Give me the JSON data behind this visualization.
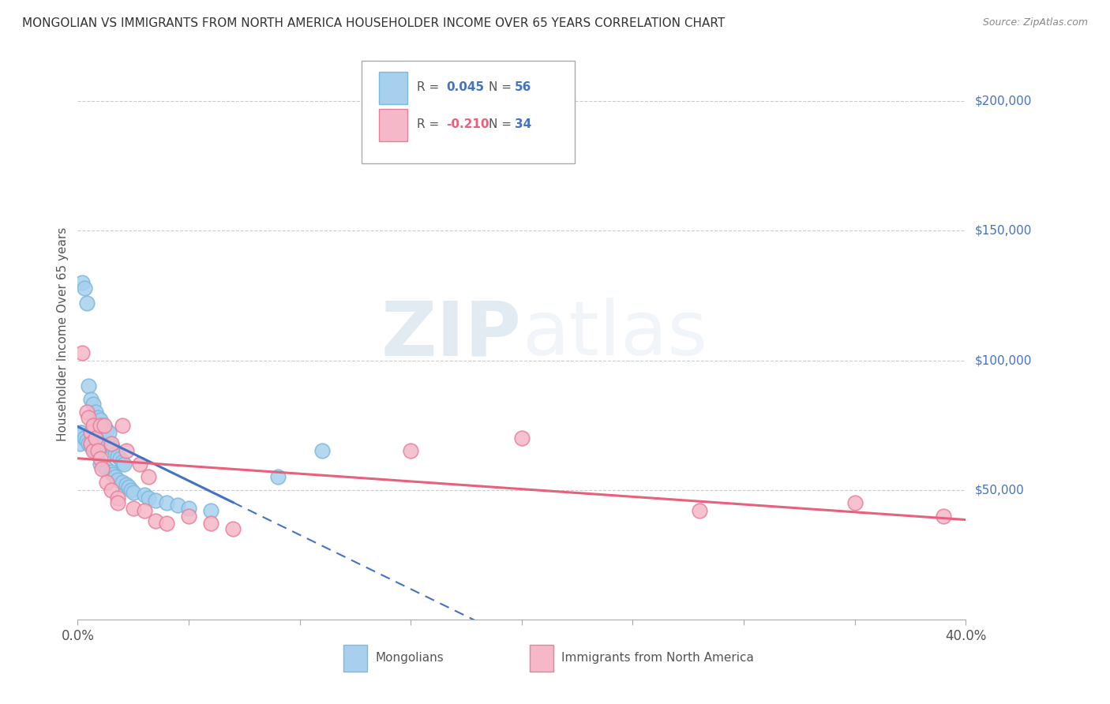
{
  "title": "MONGOLIAN VS IMMIGRANTS FROM NORTH AMERICA HOUSEHOLDER INCOME OVER 65 YEARS CORRELATION CHART",
  "source": "Source: ZipAtlas.com",
  "ylabel": "Householder Income Over 65 years",
  "xlim": [
    0.0,
    0.4
  ],
  "ylim": [
    0,
    220000
  ],
  "mongolian_R": "0.045",
  "mongolian_N": "56",
  "immigrant_R": "-0.210",
  "immigrant_N": "34",
  "mongolian_color": "#A8D0EE",
  "mongolian_edge_color": "#7BBADE",
  "immigrant_color": "#F5B8C8",
  "immigrant_edge_color": "#E8809A",
  "mongolian_line_color": "#4472C4",
  "immigrant_line_color": "#E8607A",
  "background_color": "#FFFFFF",
  "grid_color": "#CCCCCC",
  "watermark_zip": "ZIP",
  "watermark_atlas": "atlas",
  "title_color": "#333333",
  "source_color": "#888888",
  "ylabel_color": "#555555",
  "ytick_color": "#4472C4",
  "mongolian_x": [
    0.001,
    0.001,
    0.002,
    0.002,
    0.003,
    0.003,
    0.004,
    0.004,
    0.005,
    0.005,
    0.006,
    0.006,
    0.007,
    0.007,
    0.008,
    0.008,
    0.008,
    0.009,
    0.009,
    0.009,
    0.01,
    0.01,
    0.01,
    0.01,
    0.011,
    0.011,
    0.012,
    0.012,
    0.013,
    0.013,
    0.014,
    0.015,
    0.015,
    0.016,
    0.016,
    0.017,
    0.017,
    0.018,
    0.018,
    0.019,
    0.02,
    0.02,
    0.021,
    0.022,
    0.023,
    0.024,
    0.025,
    0.03,
    0.032,
    0.035,
    0.04,
    0.045,
    0.05,
    0.06,
    0.09,
    0.11
  ],
  "mongolian_y": [
    72000,
    68000,
    130000,
    72000,
    128000,
    70000,
    122000,
    69000,
    90000,
    68000,
    85000,
    67000,
    83000,
    66000,
    80000,
    75000,
    65000,
    78000,
    74000,
    64000,
    77000,
    73000,
    71000,
    60000,
    75000,
    70000,
    68000,
    59000,
    73000,
    58000,
    72000,
    67000,
    57000,
    66000,
    56000,
    64000,
    55000,
    63000,
    54000,
    62000,
    61000,
    53000,
    60000,
    52000,
    51000,
    50000,
    49000,
    48000,
    47000,
    46000,
    45000,
    44000,
    43000,
    42000,
    55000,
    65000
  ],
  "immigrant_x": [
    0.002,
    0.004,
    0.005,
    0.006,
    0.006,
    0.007,
    0.007,
    0.008,
    0.009,
    0.01,
    0.01,
    0.011,
    0.012,
    0.013,
    0.015,
    0.015,
    0.018,
    0.018,
    0.02,
    0.022,
    0.025,
    0.028,
    0.03,
    0.032,
    0.035,
    0.04,
    0.05,
    0.06,
    0.07,
    0.15,
    0.2,
    0.28,
    0.35,
    0.39
  ],
  "immigrant_y": [
    103000,
    80000,
    78000,
    72000,
    68000,
    75000,
    65000,
    70000,
    65000,
    62000,
    75000,
    58000,
    75000,
    53000,
    50000,
    68000,
    47000,
    45000,
    75000,
    65000,
    43000,
    60000,
    42000,
    55000,
    38000,
    37000,
    40000,
    37000,
    35000,
    65000,
    70000,
    42000,
    45000,
    40000
  ]
}
